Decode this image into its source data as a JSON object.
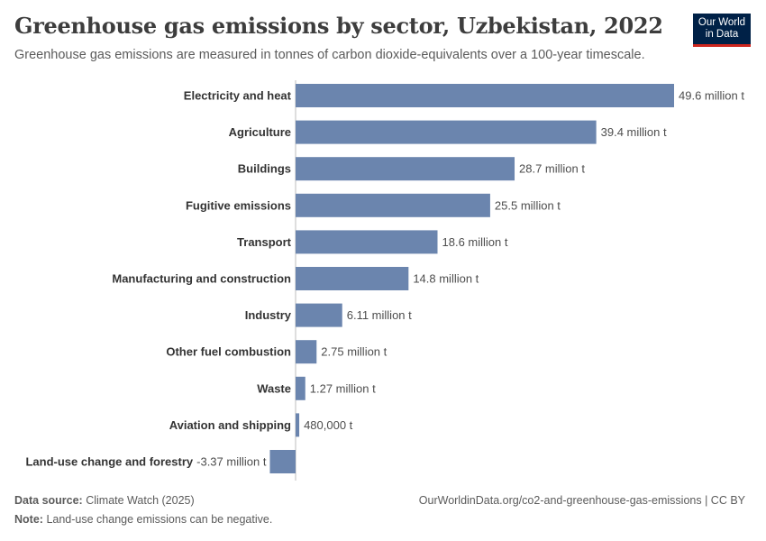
{
  "header": {
    "title": "Greenhouse gas emissions by sector, Uzbekistan, 2022",
    "subtitle": "Greenhouse gas emissions are measured in tonnes of carbon dioxide-equivalents over a 100-year timescale.",
    "logo_line1": "Our World",
    "logo_line2": "in Data"
  },
  "colors": {
    "bar": "#6b85ae",
    "zero_line": "#bdbdbd",
    "text": "#333333",
    "logo_bg": "#002147",
    "logo_accent": "#ce261e"
  },
  "chart_data": {
    "type": "bar",
    "orientation": "horizontal",
    "unit": "million t",
    "categories": [
      "Electricity and heat",
      "Agriculture",
      "Buildings",
      "Fugitive emissions",
      "Transport",
      "Manufacturing and construction",
      "Industry",
      "Other fuel combustion",
      "Waste",
      "Aviation and shipping",
      "Land-use change and forestry"
    ],
    "values": [
      49.6,
      39.4,
      28.7,
      25.5,
      18.6,
      14.8,
      6.11,
      2.75,
      1.27,
      0.48,
      -3.37
    ],
    "value_labels": [
      "49.6 million t",
      "39.4 million t",
      "28.7 million t",
      "25.5 million t",
      "18.6 million t",
      "14.8 million t",
      "6.11 million t",
      "2.75 million t",
      "1.27 million t",
      "480,000 t",
      "-3.37 million t"
    ],
    "xlim": [
      -3.37,
      49.6
    ]
  },
  "footer": {
    "source_label": "Data source:",
    "source_value": "Climate Watch (2025)",
    "url": "OurWorldinData.org/co2-and-greenhouse-gas-emissions | CC BY",
    "note_label": "Note:",
    "note_value": "Land-use change emissions can be negative."
  }
}
